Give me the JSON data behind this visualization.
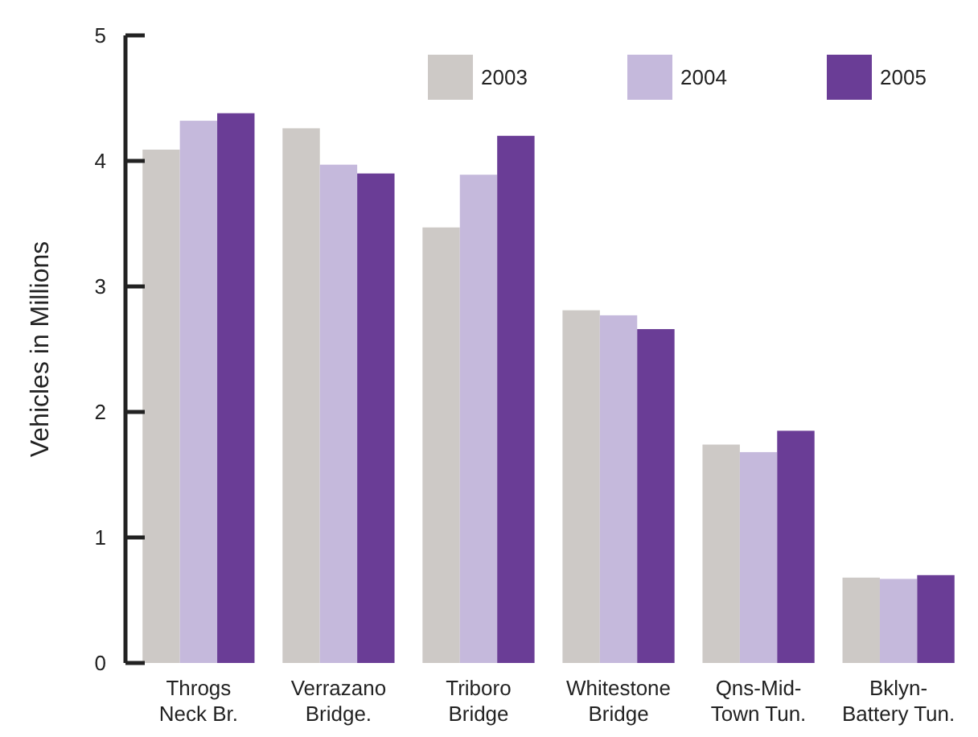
{
  "chart_data": {
    "type": "bar",
    "ylabel": "Vehicles in Millions",
    "categories": [
      "Throgs\nNeck Br.",
      "Verrazano\nBridge.",
      "Triboro\nBridge",
      "Whitestone\nBridge",
      "Qns-Mid-\nTown Tun.",
      "Bklyn-\nBattery Tun."
    ],
    "series": [
      {
        "name": "2003",
        "color": "#cdc9c6",
        "values": [
          4.09,
          4.26,
          3.47,
          2.81,
          1.74,
          0.68
        ]
      },
      {
        "name": "2004",
        "color": "#c5b9dc",
        "values": [
          4.32,
          3.97,
          3.89,
          2.77,
          1.68,
          0.67
        ]
      },
      {
        "name": "2005",
        "color": "#6a3d96",
        "values": [
          4.38,
          3.9,
          4.2,
          2.66,
          1.85,
          0.7
        ]
      }
    ],
    "ylim": [
      0,
      5
    ],
    "yticks": [
      0,
      1,
      2,
      3,
      4,
      5
    ],
    "legend": "top right"
  }
}
